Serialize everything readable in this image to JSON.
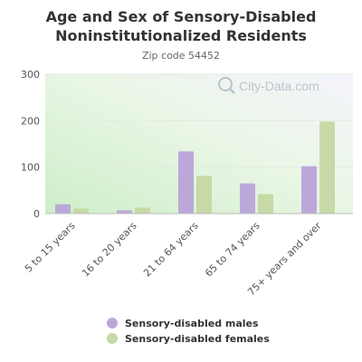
{
  "chart_data": {
    "type": "bar",
    "title_line1": "Age and Sex of Sensory-Disabled",
    "title_line2": "Noninstitutionalized Residents",
    "subtitle": "Zip code 54452",
    "watermark": "City-Data.com",
    "categories": [
      "5 to 15 years",
      "16 to 20 years",
      "21 to 64 years",
      "65 to 74 years",
      "75+ years and over"
    ],
    "series": [
      {
        "name": "Sensory-disabled males",
        "color": "#bba8d9",
        "values": [
          20,
          7,
          134,
          65,
          102
        ]
      },
      {
        "name": "Sensory-disabled females",
        "color": "#c6d9a6",
        "values": [
          11,
          13,
          81,
          42,
          198
        ]
      }
    ],
    "ylim": [
      0,
      300
    ],
    "yticks": [
      "0",
      "100",
      "200",
      "300"
    ],
    "grid": true,
    "legend_position": "bottom"
  }
}
